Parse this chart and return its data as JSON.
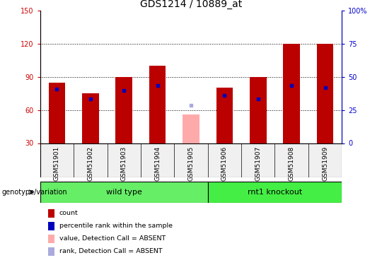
{
  "title": "GDS1214 / 10889_at",
  "samples": [
    "GSM51901",
    "GSM51902",
    "GSM51903",
    "GSM51904",
    "GSM51905",
    "GSM51906",
    "GSM51907",
    "GSM51908",
    "GSM51909"
  ],
  "count_values": [
    85,
    75,
    90,
    100,
    null,
    80,
    90,
    120,
    120
  ],
  "rank_values": [
    79,
    70,
    78,
    82,
    null,
    73,
    70,
    82,
    80
  ],
  "absent_value": 56,
  "absent_rank": 64,
  "absent_index": 4,
  "ylim_left": [
    30,
    150
  ],
  "ylim_right": [
    0,
    100
  ],
  "yticks_left": [
    30,
    60,
    90,
    120,
    150
  ],
  "yticks_right": [
    0,
    25,
    50,
    75,
    100
  ],
  "yticklabels_right": [
    "0",
    "25",
    "50",
    "75",
    "100%"
  ],
  "bar_width": 0.5,
  "count_color": "#BB0000",
  "rank_color": "#0000BB",
  "absent_count_color": "#FFAAAA",
  "absent_rank_color": "#AAAADD",
  "grid_color": "black",
  "wt_color": "#66EE66",
  "ko_color": "#44EE44",
  "group_label": "genotype/variation",
  "wt_label": "wild type",
  "ko_label": "rnt1 knockout",
  "legend_items": [
    {
      "color": "#BB0000",
      "label": "count"
    },
    {
      "color": "#0000BB",
      "label": "percentile rank within the sample"
    },
    {
      "color": "#FFAAAA",
      "label": "value, Detection Call = ABSENT"
    },
    {
      "color": "#AAAADD",
      "label": "rank, Detection Call = ABSENT"
    }
  ],
  "title_fontsize": 10,
  "tick_fontsize": 7,
  "label_fontsize": 6.5,
  "axis_color_left": "#CC0000",
  "axis_color_right": "#0000CC",
  "bg_color": "#F0F0F0"
}
